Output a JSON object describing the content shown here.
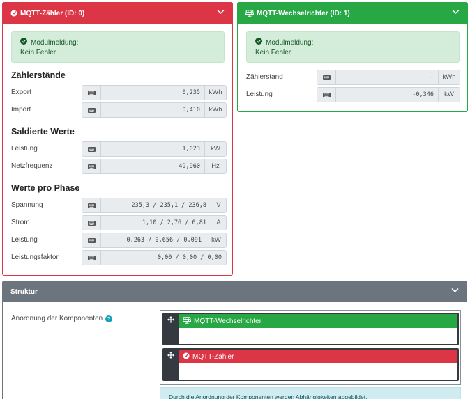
{
  "meter_card": {
    "title": "MQTT-Zähler (ID: 0)",
    "alert": {
      "title": "Modulmeldung:",
      "text": "Kein Fehler."
    },
    "sections": [
      {
        "heading": "Zählerstände",
        "rows": [
          {
            "label": "Export",
            "value": "0,235",
            "unit": "kWh"
          },
          {
            "label": "Import",
            "value": "0,410",
            "unit": "kWh"
          }
        ]
      },
      {
        "heading": "Saldierte Werte",
        "rows": [
          {
            "label": "Leistung",
            "value": "1,023",
            "unit": "kW"
          },
          {
            "label": "Netzfrequenz",
            "value": "49,960",
            "unit": "Hz"
          }
        ]
      },
      {
        "heading": "Werte pro Phase",
        "rows": [
          {
            "label": "Spannung",
            "value": "235,3 / 235,1 / 236,8",
            "unit": "V"
          },
          {
            "label": "Strom",
            "value": "1,10 / 2,76 / 0,81",
            "unit": "A"
          },
          {
            "label": "Leistung",
            "value": "0,263 / 0,656 / 0,091",
            "unit": "kW"
          },
          {
            "label": "Leistungsfaktor",
            "value": "0,00 / 0,00 / 0,00",
            "unit": ""
          }
        ]
      }
    ]
  },
  "inverter_card": {
    "title": "MQTT-Wechselrichter (ID: 1)",
    "alert": {
      "title": "Modulmeldung:",
      "text": "Kein Fehler."
    },
    "rows": [
      {
        "label": "Zählerstand",
        "value": "-",
        "unit": "kWh"
      },
      {
        "label": "Leistung",
        "value": "-0,346",
        "unit": "kW"
      }
    ]
  },
  "structure_card": {
    "title": "Struktur",
    "label": "Anordnung der Komponenten",
    "help": "?",
    "nodes": [
      {
        "label": "MQTT-Wechselrichter",
        "icon": "solar-panel-icon"
      },
      {
        "label": "MQTT-Zähler",
        "icon": "gauge-icon"
      }
    ],
    "info": "Durch die Anordnung der Komponenten werden Abhängigkeiten abgebildet."
  },
  "colors": {
    "danger": "#dc3545",
    "success": "#28a745",
    "secondary": "#6c757d",
    "alert_success_bg": "#d4edda",
    "info_bg": "#d1ecf1"
  }
}
